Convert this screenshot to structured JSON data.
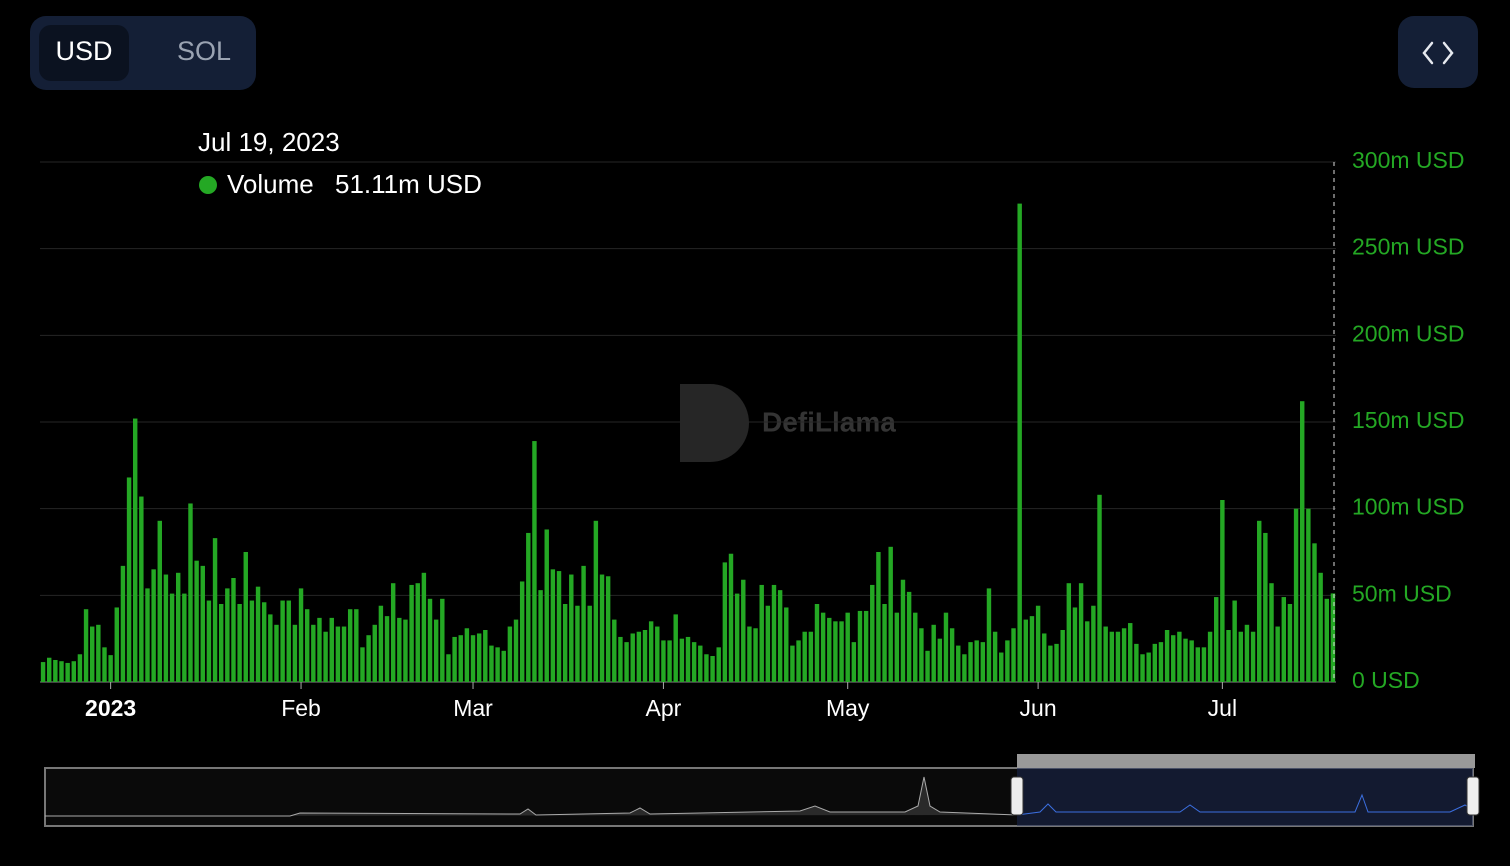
{
  "toggle": {
    "options": [
      "USD",
      "SOL"
    ],
    "active": "USD"
  },
  "watermark": "DefiLlama",
  "chart_data": {
    "type": "bar",
    "color": "#24a824",
    "grid": true,
    "tooltip": {
      "date": "Jul 19, 2023",
      "series": "Volume",
      "value_label": "51.11m USD"
    },
    "ylim": [
      0,
      300
    ],
    "yticks": [
      {
        "value": 0,
        "label": "0 USD"
      },
      {
        "value": 50,
        "label": "50m USD"
      },
      {
        "value": 100,
        "label": "100m USD"
      },
      {
        "value": 150,
        "label": "150m USD"
      },
      {
        "value": 200,
        "label": "200m USD"
      },
      {
        "value": 250,
        "label": "250m USD"
      },
      {
        "value": 300,
        "label": "300m USD"
      }
    ],
    "categories": [
      null,
      null,
      null,
      null,
      null,
      null,
      null,
      null,
      null,
      null,
      null,
      "2023",
      null,
      null,
      null,
      null,
      null,
      null,
      null,
      null,
      null,
      null,
      null,
      null,
      null,
      null,
      null,
      null,
      null,
      null,
      null,
      null,
      null,
      null,
      null,
      null,
      null,
      null,
      null,
      null,
      null,
      null,
      "Feb",
      null,
      null,
      null,
      null,
      null,
      null,
      null,
      null,
      null,
      null,
      null,
      null,
      null,
      null,
      null,
      null,
      null,
      null,
      null,
      null,
      null,
      null,
      null,
      null,
      null,
      null,
      null,
      "Mar",
      null,
      null,
      null,
      null,
      null,
      null,
      null,
      null,
      null,
      null,
      null,
      null,
      null,
      null,
      null,
      null,
      null,
      null,
      null,
      null,
      null,
      null,
      null,
      null,
      null,
      null,
      null,
      null,
      null,
      null,
      "Apr",
      null,
      null,
      null,
      null,
      null,
      null,
      null,
      null,
      null,
      null,
      null,
      null,
      null,
      null,
      null,
      null,
      null,
      null,
      null,
      null,
      null,
      null,
      null,
      null,
      null,
      null,
      null,
      null,
      null,
      "May",
      null,
      null,
      null,
      null,
      null,
      null,
      null,
      null,
      null,
      null,
      null,
      null,
      null,
      null,
      null,
      null,
      null,
      null,
      null,
      null,
      null,
      null,
      null,
      null,
      null,
      null,
      null,
      null,
      null,
      null,
      "Jun",
      null,
      null,
      null,
      null,
      null,
      null,
      null,
      null,
      null,
      null,
      null,
      null,
      null,
      null,
      null,
      null,
      null,
      null,
      null,
      null,
      null,
      null,
      null,
      null,
      null,
      null,
      null,
      null,
      null,
      "Jul",
      null,
      null,
      null,
      null,
      null,
      null,
      null,
      null,
      null,
      null,
      null,
      null,
      null,
      null,
      null,
      null,
      null,
      null
    ],
    "values": [
      11.5,
      14,
      12.7,
      12,
      11,
      12,
      16,
      42,
      32,
      33,
      20,
      15.5,
      43,
      67,
      118,
      152,
      107,
      54,
      65,
      93,
      62,
      51,
      63,
      51,
      103,
      70,
      67,
      47,
      83,
      45,
      54,
      60,
      45,
      75,
      47,
      55,
      46,
      39,
      33,
      47,
      47,
      33,
      54,
      42,
      33,
      37,
      29,
      37,
      32,
      32,
      42,
      42,
      20,
      27,
      33,
      44,
      38,
      57,
      37,
      36,
      56,
      57,
      63,
      48,
      36,
      48,
      16,
      26,
      27,
      31,
      27,
      28,
      30,
      21,
      20,
      18,
      32,
      36,
      58,
      86,
      139,
      53,
      88,
      65,
      64,
      45,
      62,
      44,
      67,
      44,
      93,
      62,
      61,
      36,
      26,
      23,
      28,
      29,
      30,
      35,
      32,
      24,
      24,
      39,
      25,
      26,
      23,
      21,
      16,
      15,
      20,
      69,
      74,
      51,
      59,
      32,
      31,
      56,
      44,
      56,
      53,
      43,
      21,
      24,
      29,
      29,
      45,
      40,
      37,
      35,
      35,
      40,
      23,
      41,
      41,
      56,
      75,
      45,
      78,
      40,
      59,
      52,
      40,
      31,
      18,
      33,
      25,
      40,
      31,
      21,
      16,
      23,
      24,
      23,
      54,
      29,
      17,
      24,
      31,
      276,
      36,
      38,
      44,
      28,
      21,
      22,
      30,
      57,
      43,
      57,
      35,
      44,
      108,
      32,
      29,
      29,
      31,
      34,
      22,
      16,
      17,
      22,
      23,
      30,
      27,
      29,
      25,
      24,
      20,
      20,
      29,
      49,
      105,
      30,
      47,
      29,
      33,
      29,
      93,
      86,
      57,
      32,
      49,
      45,
      100,
      162,
      100,
      80,
      63,
      48,
      51.11
    ]
  }
}
